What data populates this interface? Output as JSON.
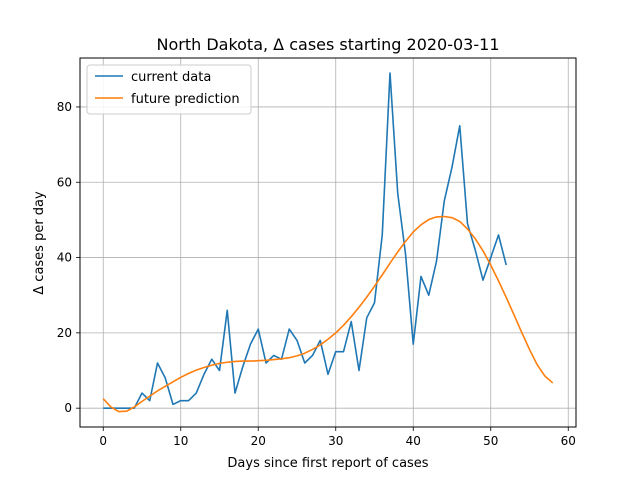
{
  "chart_data": {
    "type": "line",
    "title": "North Dakota, Δ cases starting 2020-03-11",
    "xlabel": "Days since first report of cases",
    "ylabel": "Δ cases per day",
    "xlim": [
      -3,
      61
    ],
    "ylim": [
      -5,
      93
    ],
    "xticks": [
      0,
      10,
      20,
      30,
      40,
      50,
      60
    ],
    "yticks": [
      0,
      20,
      40,
      60,
      80
    ],
    "grid": true,
    "legend_position": "upper-left",
    "series": [
      {
        "name": "current data",
        "color": "#1f77b4",
        "x": [
          0,
          1,
          2,
          3,
          4,
          5,
          6,
          7,
          8,
          9,
          10,
          11,
          12,
          13,
          14,
          15,
          16,
          17,
          18,
          19,
          20,
          21,
          22,
          23,
          24,
          25,
          26,
          27,
          28,
          29,
          30,
          31,
          32,
          33,
          34,
          35,
          36,
          37,
          38,
          39,
          40,
          41,
          42,
          43,
          44,
          45,
          46,
          47,
          48,
          49,
          50,
          51,
          52
        ],
        "y": [
          0,
          0,
          0,
          0,
          0,
          4,
          2,
          12,
          8,
          1,
          2,
          2,
          4,
          9,
          13,
          10,
          26,
          4,
          11,
          17,
          21,
          12,
          14,
          13,
          21,
          18,
          12,
          14,
          18,
          9,
          15,
          15,
          23,
          10,
          24,
          28,
          46,
          89,
          57,
          41,
          17,
          35,
          30,
          39,
          55,
          64,
          75,
          49,
          42,
          34,
          40,
          46,
          38
        ]
      },
      {
        "name": "future prediction",
        "color": "#ff7f0e",
        "x": [
          0,
          1,
          2,
          3,
          4,
          5,
          6,
          7,
          8,
          9,
          10,
          11,
          12,
          13,
          14,
          15,
          16,
          17,
          18,
          19,
          20,
          21,
          22,
          23,
          24,
          25,
          26,
          27,
          28,
          29,
          30,
          31,
          32,
          33,
          34,
          35,
          36,
          37,
          38,
          39,
          40,
          41,
          42,
          43,
          44,
          45,
          46,
          47,
          48,
          49,
          50,
          51,
          52,
          53,
          54,
          55,
          56,
          57,
          58
        ],
        "y": [
          2.5,
          0.3,
          -0.9,
          -0.8,
          0.3,
          1.8,
          3.2,
          4.6,
          5.8,
          7,
          8.2,
          9.2,
          10.1,
          10.8,
          11.4,
          11.9,
          12.2,
          12.4,
          12.5,
          12.5,
          12.6,
          12.7,
          12.9,
          13.1,
          13.4,
          13.9,
          14.6,
          15.6,
          16.8,
          18.3,
          20,
          22,
          24.3,
          26.8,
          29.5,
          32.4,
          35.4,
          38.5,
          41.5,
          44.3,
          46.8,
          48.7,
          50.1,
          50.8,
          50.9,
          50.6,
          49.6,
          47.6,
          45,
          41.8,
          38,
          33.8,
          29.4,
          24.8,
          20.1,
          15.6,
          11.5,
          8.5,
          6.7
        ]
      }
    ]
  }
}
